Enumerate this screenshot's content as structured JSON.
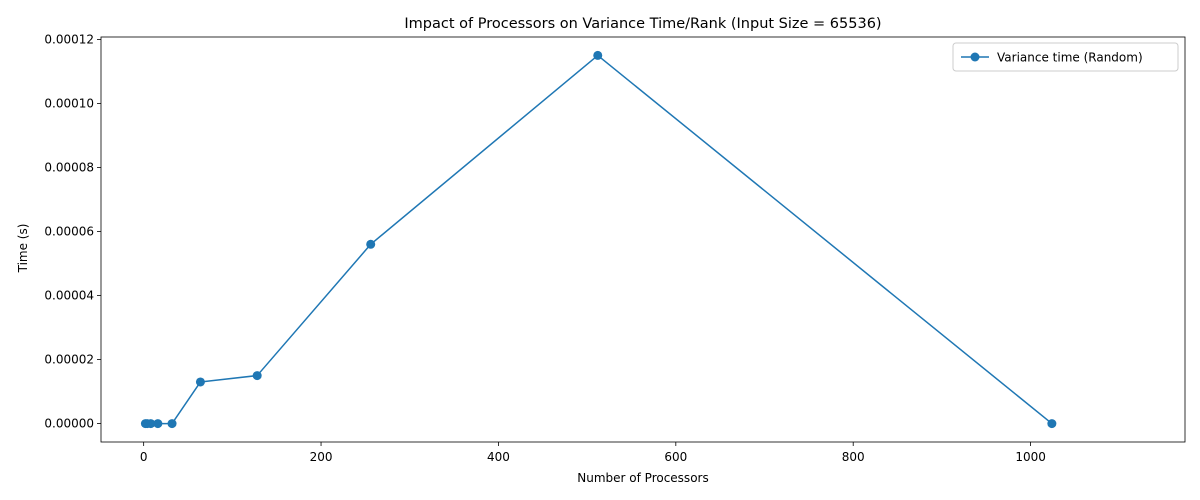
{
  "chart_data": {
    "type": "line",
    "title": "Impact of Processors on Variance Time/Rank (Input Size = 65536)",
    "xlabel": "Number of Processors",
    "ylabel": "Time (s)",
    "xlim": [
      -48.1,
      1174.1
    ],
    "ylim": [
      -5.75e-06,
      0.00012075
    ],
    "xticks": [
      0,
      200,
      400,
      600,
      800,
      1000
    ],
    "xtick_labels": [
      "0",
      "200",
      "400",
      "600",
      "800",
      "1000"
    ],
    "yticks": [
      0,
      2e-05,
      4e-05,
      6e-05,
      8e-05,
      0.0001,
      0.00012
    ],
    "ytick_labels": [
      "0.00000",
      "0.00002",
      "0.00004",
      "0.00006",
      "0.00008",
      "0.00010",
      "0.00012"
    ],
    "grid": false,
    "legend_position": "top-right",
    "series": [
      {
        "name": "Variance time (Random)",
        "color": "#1f77b4",
        "marker": "circle",
        "x": [
          2,
          4,
          8,
          16,
          32,
          64,
          128,
          256,
          512,
          1024
        ],
        "y": [
          0,
          0,
          0,
          0,
          0,
          1.3e-05,
          1.5e-05,
          5.6e-05,
          0.000115,
          0
        ]
      }
    ]
  }
}
